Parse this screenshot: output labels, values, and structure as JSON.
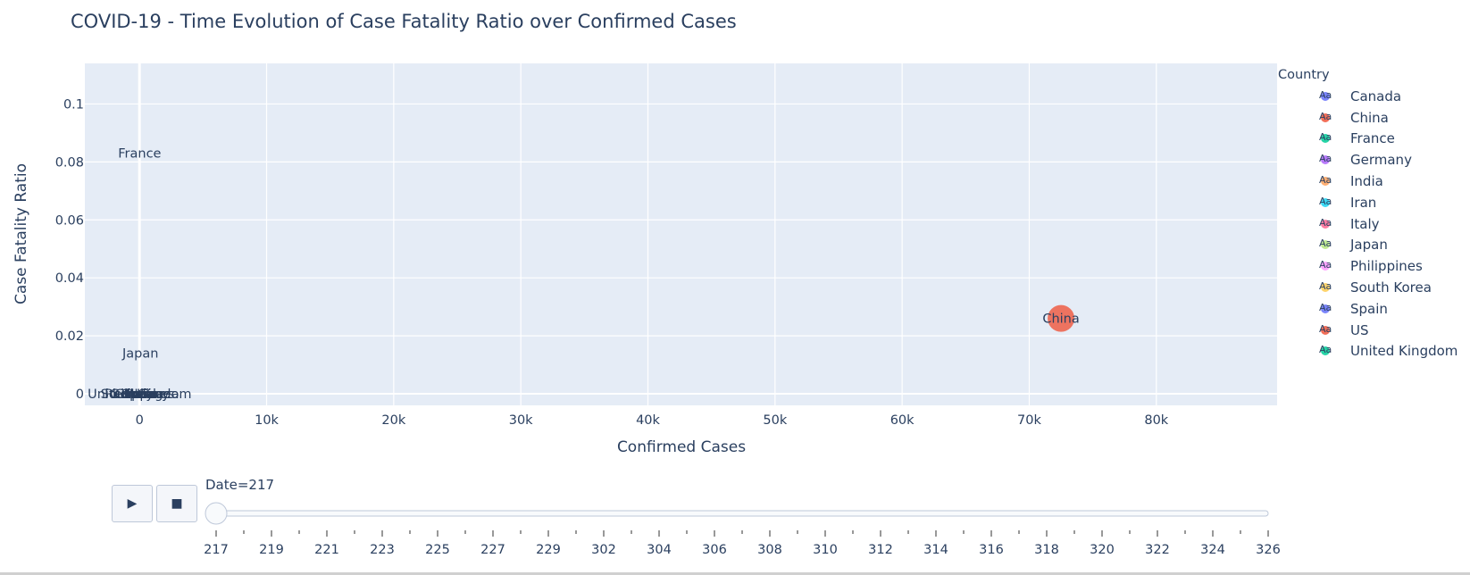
{
  "chart_data": {
    "type": "scatter",
    "title": "COVID-19 - Time Evolution of Case Fatality Ratio over Confirmed Cases",
    "xlabel": "Confirmed Cases",
    "ylabel": "Case Fatality Ratio",
    "xlim": [
      -4300,
      89500
    ],
    "ylim": [
      -0.004,
      0.114
    ],
    "x_ticks": [
      0,
      10000,
      20000,
      30000,
      40000,
      50000,
      60000,
      70000,
      80000
    ],
    "x_tick_labels": [
      "0",
      "10k",
      "20k",
      "30k",
      "40k",
      "50k",
      "60k",
      "70k",
      "80k"
    ],
    "y_ticks": [
      0,
      0.02,
      0.04,
      0.06,
      0.08,
      0.1
    ],
    "y_tick_labels": [
      "0",
      "0.02",
      "0.04",
      "0.06",
      "0.08",
      "0.1"
    ],
    "grid": true,
    "legend_title": "Country",
    "legend_position": "right",
    "series": [
      {
        "name": "Canada",
        "color": "#636efa",
        "x": 1,
        "y": 0
      },
      {
        "name": "China",
        "color": "#ef553b",
        "x": 72500,
        "y": 0.026,
        "size": "large"
      },
      {
        "name": "France",
        "color": "#00cc96",
        "x": 12,
        "y": 0.083
      },
      {
        "name": "Germany",
        "color": "#ab63fa",
        "x": 16,
        "y": 0
      },
      {
        "name": "India",
        "color": "#ffa15a",
        "x": 3,
        "y": 0
      },
      {
        "name": "Iran",
        "color": "#19d3f3",
        "x": 0,
        "y": 0
      },
      {
        "name": "Italy",
        "color": "#ff6692",
        "x": 3,
        "y": 0
      },
      {
        "name": "Japan",
        "color": "#b6e880",
        "x": 73,
        "y": 0.014
      },
      {
        "name": "Philippines",
        "color": "#ff97ff",
        "x": 1,
        "y": 0
      },
      {
        "name": "South Korea",
        "color": "#fecb52",
        "x": 28,
        "y": 0
      },
      {
        "name": "Spain",
        "color": "#636efa",
        "x": 2,
        "y": 0
      },
      {
        "name": "US",
        "color": "#ef553b",
        "x": 15,
        "y": 0
      },
      {
        "name": "United Kingdom",
        "color": "#00cc96",
        "x": 9,
        "y": 0
      }
    ]
  },
  "slider": {
    "current_label": "Date=217",
    "tick_labels": [
      "217",
      "219",
      "221",
      "223",
      "225",
      "227",
      "229",
      "302",
      "304",
      "306",
      "308",
      "310",
      "312",
      "314",
      "316",
      "318",
      "320",
      "322",
      "324",
      "326"
    ],
    "play_icon": "play-icon",
    "stop_icon": "stop-icon"
  },
  "colors": {
    "plot_background": "#e5ecf6",
    "grid": "#ffffff",
    "text": "#2a3f5f"
  }
}
